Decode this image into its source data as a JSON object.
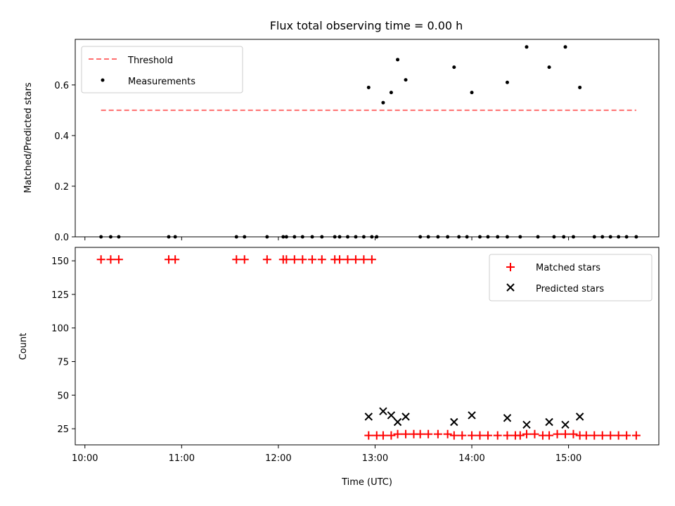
{
  "figure": {
    "title": "Flux total observing time = 0.00 h"
  },
  "chart_data": [
    {
      "type": "scatter",
      "ylabel": "Matched/Predicted stars",
      "xlim": [
        "09:54",
        "15:56"
      ],
      "ylim": [
        0,
        0.78
      ],
      "yticks": [
        0.0,
        0.2,
        0.4,
        0.6
      ],
      "ytick_labels": [
        "0.0",
        "0.2",
        "0.4",
        "0.6"
      ],
      "legend_position": "upper-left",
      "threshold": {
        "name": "Threshold",
        "value": 0.5,
        "x_range": [
          "10:10",
          "15:42"
        ],
        "color": "#ff6e6e",
        "style": "dashed"
      },
      "series": [
        {
          "name": "Measurements",
          "color": "#000000",
          "points": [
            [
              "10:10",
              0
            ],
            [
              "10:16",
              0
            ],
            [
              "10:21",
              0
            ],
            [
              "10:52",
              0
            ],
            [
              "10:56",
              0
            ],
            [
              "11:34",
              0
            ],
            [
              "11:39",
              0
            ],
            [
              "11:53",
              0
            ],
            [
              "12:03",
              0
            ],
            [
              "12:05",
              0
            ],
            [
              "12:10",
              0
            ],
            [
              "12:15",
              0
            ],
            [
              "12:21",
              0
            ],
            [
              "12:27",
              0
            ],
            [
              "12:35",
              0
            ],
            [
              "12:38",
              0
            ],
            [
              "12:43",
              0
            ],
            [
              "12:48",
              0
            ],
            [
              "12:53",
              0
            ],
            [
              "12:58",
              0
            ],
            [
              "13:01",
              0
            ],
            [
              "12:56",
              0.59
            ],
            [
              "13:05",
              0.53
            ],
            [
              "13:10",
              0.57
            ],
            [
              "13:14",
              0.7
            ],
            [
              "13:19",
              0.62
            ],
            [
              "13:28",
              0
            ],
            [
              "13:33",
              0
            ],
            [
              "13:39",
              0
            ],
            [
              "13:45",
              0
            ],
            [
              "13:52",
              0
            ],
            [
              "13:57",
              0
            ],
            [
              "13:49",
              0.67
            ],
            [
              "14:00",
              0.57
            ],
            [
              "14:05",
              0
            ],
            [
              "14:10",
              0
            ],
            [
              "14:16",
              0
            ],
            [
              "14:22",
              0
            ],
            [
              "14:30",
              0
            ],
            [
              "14:41",
              0
            ],
            [
              "14:51",
              0
            ],
            [
              "14:57",
              0
            ],
            [
              "15:03",
              0
            ],
            [
              "14:22",
              0.61
            ],
            [
              "14:34",
              0.75
            ],
            [
              "14:48",
              0.67
            ],
            [
              "14:58",
              0.75
            ],
            [
              "15:07",
              0.59
            ],
            [
              "15:16",
              0
            ],
            [
              "15:21",
              0
            ],
            [
              "15:26",
              0
            ],
            [
              "15:31",
              0
            ],
            [
              "15:36",
              0
            ],
            [
              "15:42",
              0
            ]
          ]
        }
      ]
    },
    {
      "type": "scatter",
      "xlabel": "Time (UTC)",
      "ylabel": "Count",
      "xlim": [
        "09:54",
        "15:56"
      ],
      "ylim": [
        13,
        160
      ],
      "xticks": [
        "10:00",
        "11:00",
        "12:00",
        "13:00",
        "14:00",
        "15:00"
      ],
      "yticks": [
        25,
        50,
        75,
        100,
        125,
        150
      ],
      "ytick_labels": [
        "25",
        "50",
        "75",
        "100",
        "125",
        "150"
      ],
      "legend_position": "upper-right",
      "series": [
        {
          "name": "Matched stars",
          "marker": "plus",
          "color": "#ff0000",
          "points": [
            [
              "10:10",
              151
            ],
            [
              "10:16",
              151
            ],
            [
              "10:21",
              151
            ],
            [
              "10:52",
              151
            ],
            [
              "10:56",
              151
            ],
            [
              "11:34",
              151
            ],
            [
              "11:39",
              151
            ],
            [
              "11:53",
              151
            ],
            [
              "12:03",
              151
            ],
            [
              "12:05",
              151
            ],
            [
              "12:10",
              151
            ],
            [
              "12:15",
              151
            ],
            [
              "12:21",
              151
            ],
            [
              "12:27",
              151
            ],
            [
              "12:35",
              151
            ],
            [
              "12:38",
              151
            ],
            [
              "12:43",
              151
            ],
            [
              "12:48",
              151
            ],
            [
              "12:53",
              151
            ],
            [
              "12:58",
              151
            ],
            [
              "12:56",
              20
            ],
            [
              "13:01",
              20
            ],
            [
              "13:05",
              20
            ],
            [
              "13:10",
              20
            ],
            [
              "13:14",
              21
            ],
            [
              "13:19",
              21
            ],
            [
              "13:24",
              21
            ],
            [
              "13:28",
              21
            ],
            [
              "13:33",
              21
            ],
            [
              "13:39",
              21
            ],
            [
              "13:45",
              21
            ],
            [
              "13:49",
              20
            ],
            [
              "13:54",
              20
            ],
            [
              "14:00",
              20
            ],
            [
              "14:05",
              20
            ],
            [
              "14:10",
              20
            ],
            [
              "14:16",
              20
            ],
            [
              "14:22",
              20
            ],
            [
              "14:27",
              20
            ],
            [
              "14:30",
              20
            ],
            [
              "14:34",
              21
            ],
            [
              "14:39",
              21
            ],
            [
              "14:44",
              20
            ],
            [
              "14:48",
              20
            ],
            [
              "14:53",
              21
            ],
            [
              "14:58",
              21
            ],
            [
              "15:03",
              21
            ],
            [
              "15:07",
              20
            ],
            [
              "15:11",
              20
            ],
            [
              "15:16",
              20
            ],
            [
              "15:21",
              20
            ],
            [
              "15:26",
              20
            ],
            [
              "15:31",
              20
            ],
            [
              "15:36",
              20
            ],
            [
              "15:42",
              20
            ]
          ]
        },
        {
          "name": "Predicted stars",
          "marker": "x",
          "color": "#000000",
          "points": [
            [
              "12:56",
              34
            ],
            [
              "13:05",
              38
            ],
            [
              "13:10",
              35
            ],
            [
              "13:14",
              30
            ],
            [
              "13:19",
              34
            ],
            [
              "13:49",
              30
            ],
            [
              "14:00",
              35
            ],
            [
              "14:22",
              33
            ],
            [
              "14:34",
              28
            ],
            [
              "14:48",
              30
            ],
            [
              "14:58",
              28
            ],
            [
              "15:07",
              34
            ]
          ]
        }
      ]
    }
  ]
}
